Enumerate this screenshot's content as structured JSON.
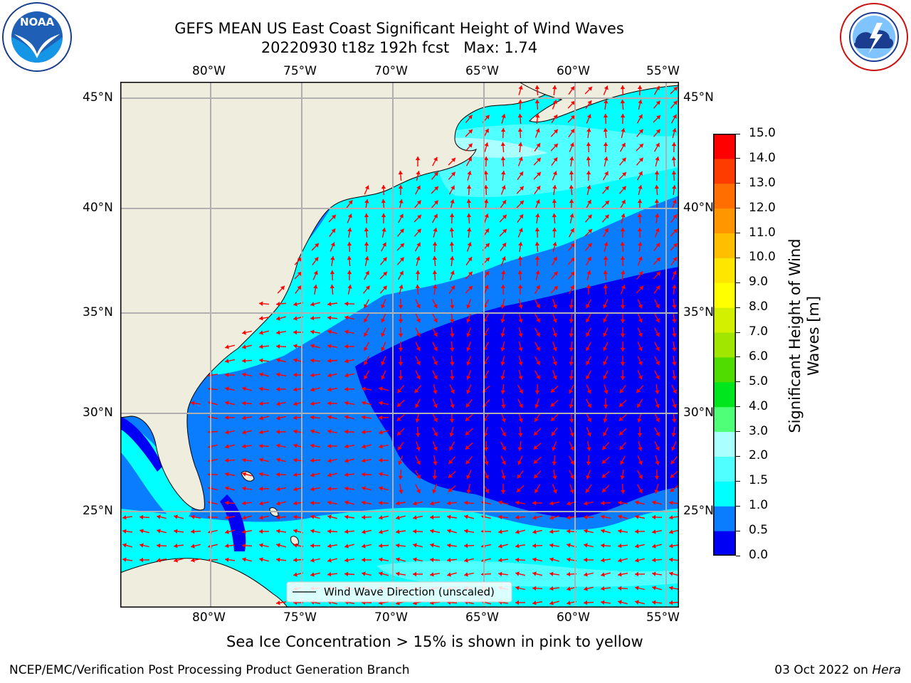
{
  "header": {
    "title_line1": "GEFS MEAN US East Coast Significant Height of Wind Waves",
    "title_line2": "20220930 t18z 192h fcst   Max: 1.74"
  },
  "logos": {
    "noaa": {
      "text": "NOAA",
      "ring": "NATIONAL OCEANIC AND ATMOSPHERIC ADMINISTRATION · U.S. DEPARTMENT OF COMMERCE",
      "icon": "noaa-logo"
    },
    "nws": {
      "ring": "NATIONAL WEATHER SERVICE",
      "icon": "nws-logo"
    }
  },
  "map": {
    "lon_labels": [
      "80°W",
      "75°W",
      "70°W",
      "65°W",
      "60°W",
      "55°W"
    ],
    "lat_labels": [
      "45°N",
      "40°N",
      "35°N",
      "30°N",
      "25°N"
    ],
    "legend": "Wind Wave Direction (unscaled)",
    "land_color": "#efedde",
    "arrow_color": "#ff0000",
    "grid_color": "#b0b0b0"
  },
  "colorbar": {
    "label": "Significant Height of Wind Waves [m]",
    "ticks": [
      "0.0",
      "0.5",
      "1.0",
      "1.5",
      "2.0",
      "3.0",
      "4.0",
      "5.0",
      "6.0",
      "7.0",
      "8.0",
      "9.0",
      "10.0",
      "11.0",
      "12.0",
      "13.0",
      "14.0",
      "15.0"
    ],
    "colors": [
      "#0000f5",
      "#0a7dff",
      "#00ffff",
      "#50ffff",
      "#aaffff",
      "#50ff78",
      "#00e61e",
      "#50dc00",
      "#a0e600",
      "#d2f000",
      "#ffff00",
      "#ffe600",
      "#ffbe00",
      "#ff9600",
      "#ff6e00",
      "#ff3c00",
      "#ff0000"
    ]
  },
  "notes": {
    "sea_ice": "Sea Ice Concentration > 15% is shown in pink to yellow"
  },
  "footer": {
    "left": "NCEP/EMC/Verification Post Processing Product Generation Branch",
    "date": "03 Oct 2022 on ",
    "machine": "Hera"
  }
}
